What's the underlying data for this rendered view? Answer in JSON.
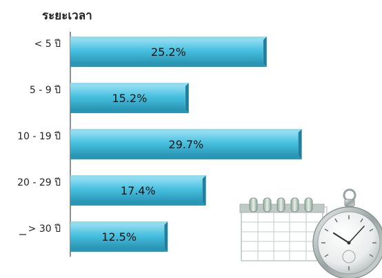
{
  "chart_data": {
    "type": "bar",
    "orientation": "horizontal",
    "title": "ระยะเวลา",
    "categories": [
      "< 5 ปี",
      "5 - 9 ปี",
      "10 - 19 ปี",
      "20 - 29 ปี",
      "> 30 ปี"
    ],
    "values": [
      25.2,
      15.2,
      29.7,
      17.4,
      12.5
    ],
    "data_labels": [
      "25.2%",
      "15.2%",
      "29.7%",
      "17.4%",
      "12.5%"
    ],
    "xlim": [
      0,
      33
    ],
    "grid": false,
    "legend": "none",
    "colors": {
      "bar": "#47c0df",
      "bar_light": "#8fdcf0",
      "bar_dark": "#2a95b5",
      "axis": "#444444"
    },
    "decoration": [
      "calendar-icon",
      "pocket-watch-icon"
    ]
  }
}
